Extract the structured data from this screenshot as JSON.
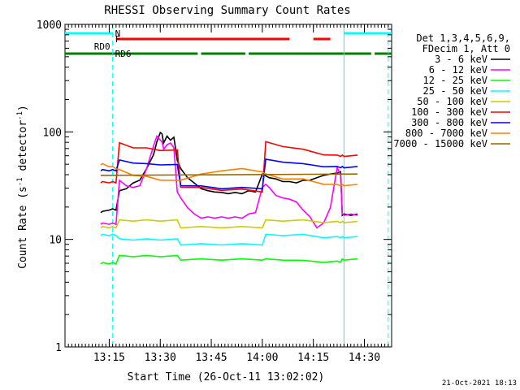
{
  "chart_data": {
    "type": "line",
    "title": "RHESSI Observing Summary Count Rates",
    "xlabel": "Start Time (26-Oct-11 13:02:02)",
    "ylabel_pre": "Count Rate (s",
    "ylabel_sup1": "-1",
    "ylabel_mid": " detector",
    "ylabel_sup2": "-1",
    "ylabel_post": ")",
    "y_scale": "log",
    "ylim": [
      1,
      1000
    ],
    "xlim_minutes": [
      0,
      96
    ],
    "x_ticks": [
      {
        "min": 13,
        "label": "13:15"
      },
      {
        "min": 28,
        "label": "13:30"
      },
      {
        "min": 43,
        "label": "13:45"
      },
      {
        "min": 58,
        "label": "14:00"
      },
      {
        "min": 73,
        "label": "14:15"
      },
      {
        "min": 88,
        "label": "14:30"
      }
    ],
    "y_ticks": [
      {
        "value": 1,
        "label": "1"
      },
      {
        "value": 10,
        "label": "10"
      },
      {
        "value": 100,
        "label": "100"
      },
      {
        "value": 1000,
        "label": "1000"
      }
    ],
    "legend_header": [
      "Det 1,3,4,5,6,9,",
      "FDecim 1, Att 0"
    ],
    "legend_placement": "right",
    "series": [
      {
        "name": "3 - 6 keV",
        "color": "#000000",
        "x": [
          10.5,
          11,
          13,
          14,
          15,
          16,
          18,
          20,
          22,
          24,
          26,
          27,
          28,
          28.5,
          29,
          30,
          31,
          32,
          33,
          34,
          36,
          38,
          40,
          42,
          44,
          46,
          48,
          50,
          52,
          54,
          56,
          58,
          60,
          62,
          64,
          66,
          68,
          70,
          72,
          74,
          76,
          78,
          80,
          81,
          81.5,
          82,
          84,
          86
        ],
        "y": [
          18,
          18,
          19,
          19,
          19,
          28,
          30,
          33,
          36,
          45,
          62,
          80,
          100,
          95,
          80,
          90,
          85,
          88,
          55,
          45,
          38,
          33,
          30,
          28,
          28,
          27,
          27,
          27,
          27,
          28,
          28,
          40,
          38,
          36,
          35,
          34,
          34,
          35,
          36,
          37,
          40,
          40,
          42,
          42,
          17,
          17,
          17,
          17
        ]
      },
      {
        "name": "6 - 12 keV",
        "color": "#ff00ff",
        "x": [
          10.5,
          11,
          13,
          14,
          15,
          16,
          18,
          20,
          22,
          24,
          26,
          27,
          28,
          28.5,
          29,
          30,
          31,
          32,
          33,
          34,
          36,
          38,
          40,
          42,
          44,
          46,
          48,
          50,
          52,
          54,
          56,
          58,
          59,
          60,
          62,
          64,
          66,
          68,
          70,
          72,
          74,
          76,
          78,
          80,
          81,
          81.5,
          82,
          84,
          86
        ],
        "y": [
          14,
          14,
          14,
          14,
          14,
          35,
          32,
          30,
          32,
          45,
          75,
          90,
          85,
          80,
          70,
          75,
          80,
          70,
          28,
          24,
          20,
          17,
          16,
          16,
          16,
          16,
          16,
          16,
          16,
          17,
          18,
          30,
          33,
          30,
          26,
          24,
          24,
          22,
          19,
          16,
          13,
          14,
          20,
          46,
          40,
          17,
          17,
          17,
          17
        ]
      },
      {
        "name": "12 - 25 keV",
        "color": "#00ff00",
        "x": [
          10.5,
          11,
          13,
          14,
          15,
          16,
          20,
          24,
          28,
          33,
          34,
          40,
          46,
          52,
          58,
          59,
          64,
          70,
          76,
          80,
          81,
          81.5,
          82,
          86
        ],
        "y": [
          6,
          6,
          6,
          6,
          6,
          7,
          7,
          7,
          7,
          7,
          6.5,
          6.5,
          6.5,
          6.5,
          6.5,
          6.5,
          6.5,
          6.3,
          6.2,
          6.2,
          6.2,
          6.5,
          6.5,
          6.5
        ]
      },
      {
        "name": "25 - 50 keV",
        "color": "#00ffff",
        "x": [
          10.5,
          11,
          13,
          14,
          15,
          16,
          20,
          24,
          28,
          33,
          34,
          40,
          46,
          52,
          58,
          59,
          64,
          70,
          76,
          80,
          81,
          81.5,
          82,
          86
        ],
        "y": [
          11,
          11,
          11,
          11,
          11,
          10,
          10,
          10,
          10,
          10,
          9,
          9,
          9,
          9,
          9,
          11,
          11,
          11,
          10.5,
          10.5,
          10.5,
          10.5,
          10.5,
          10.5
        ]
      },
      {
        "name": "50 - 100 keV",
        "color": "#cccc00",
        "x": [
          10.5,
          11,
          13,
          14,
          15,
          16,
          20,
          24,
          28,
          33,
          34,
          40,
          46,
          52,
          58,
          59,
          64,
          70,
          76,
          80,
          81,
          81.5,
          82,
          86
        ],
        "y": [
          13,
          13,
          13,
          13,
          13,
          15,
          15,
          15,
          15,
          15,
          13,
          13,
          13,
          13,
          13,
          15,
          15,
          15,
          14.5,
          14.5,
          14.5,
          14.5,
          14.5,
          14.5
        ]
      },
      {
        "name": "100 - 300 keV",
        "color": "#ff0000",
        "x": [
          10.5,
          11,
          13,
          14,
          15,
          16,
          20,
          24,
          28,
          33,
          34,
          40,
          46,
          52,
          58,
          59,
          64,
          70,
          76,
          80,
          81,
          81.5,
          82,
          86
        ],
        "y": [
          34,
          34,
          34,
          34,
          34,
          78,
          72,
          70,
          68,
          67,
          31,
          30,
          29,
          29,
          28,
          80,
          74,
          68,
          62,
          60,
          60,
          60,
          60,
          60
        ]
      },
      {
        "name": "300 - 800 keV",
        "color": "#0000ff",
        "x": [
          10.5,
          11,
          13,
          14,
          15,
          16,
          20,
          24,
          28,
          33,
          34,
          40,
          46,
          52,
          58,
          59,
          64,
          70,
          76,
          80,
          81,
          81.5,
          82,
          86
        ],
        "y": [
          44,
          44,
          44,
          44,
          44,
          54,
          52,
          50,
          50,
          49,
          32,
          31,
          30,
          30,
          30,
          55,
          53,
          50,
          48,
          47,
          47,
          47,
          47,
          47
        ]
      },
      {
        "name": "800 - 7000 keV",
        "color": "#ff8000",
        "x": [
          10.5,
          11,
          13,
          14,
          15,
          16,
          20,
          24,
          28,
          33,
          34,
          40,
          46,
          52,
          58,
          59,
          64,
          70,
          76,
          80,
          81,
          81.5,
          82,
          86
        ],
        "y": [
          50,
          50,
          48,
          47,
          46,
          44,
          40,
          38,
          36,
          35,
          36,
          40,
          44,
          45,
          43,
          40,
          37,
          36,
          33,
          32,
          32,
          32,
          32,
          32
        ]
      },
      {
        "name": "7000 - 15000 keV",
        "color": "#996600",
        "x": [
          10.5,
          86
        ],
        "y": [
          40,
          40
        ]
      }
    ],
    "yellow_series_override": {
      "3 - 6 keV": "#000000"
    },
    "extra_olive_series": {
      "name": "7000 - 15000 keV",
      "note_color": "#996600"
    },
    "state_bars": [
      {
        "label": "N",
        "color": "#00ffff",
        "label_at_min": 14,
        "segments": [
          [
            0,
            14
          ],
          [
            82,
            96
          ]
        ],
        "level": 1.0
      },
      {
        "label": "F",
        "color": "#ff0000",
        "label_at_min": 14,
        "segments": [
          [
            15,
            66
          ],
          [
            73,
            78
          ]
        ],
        "level": 2.0
      },
      {
        "label": "RD0",
        "color": "#008000",
        "label_at_min": 14,
        "label_left": true,
        "segments": [],
        "level": 3.0
      },
      {
        "label": "RD6",
        "color": "#008000",
        "label_at_min": 14,
        "segments": [
          [
            0,
            39
          ],
          [
            40,
            53
          ],
          [
            54,
            90
          ],
          [
            91,
            96
          ]
        ],
        "level": 3.5
      }
    ],
    "vlines": [
      {
        "min": 14,
        "color": "#00ffff",
        "style": "dashed"
      },
      {
        "min": 82,
        "color": "#00ffff",
        "style": "solid"
      },
      {
        "min": 95,
        "color": "#00ffff",
        "style": "dashed"
      }
    ],
    "stamp": "21-Oct-2021 18:13"
  }
}
